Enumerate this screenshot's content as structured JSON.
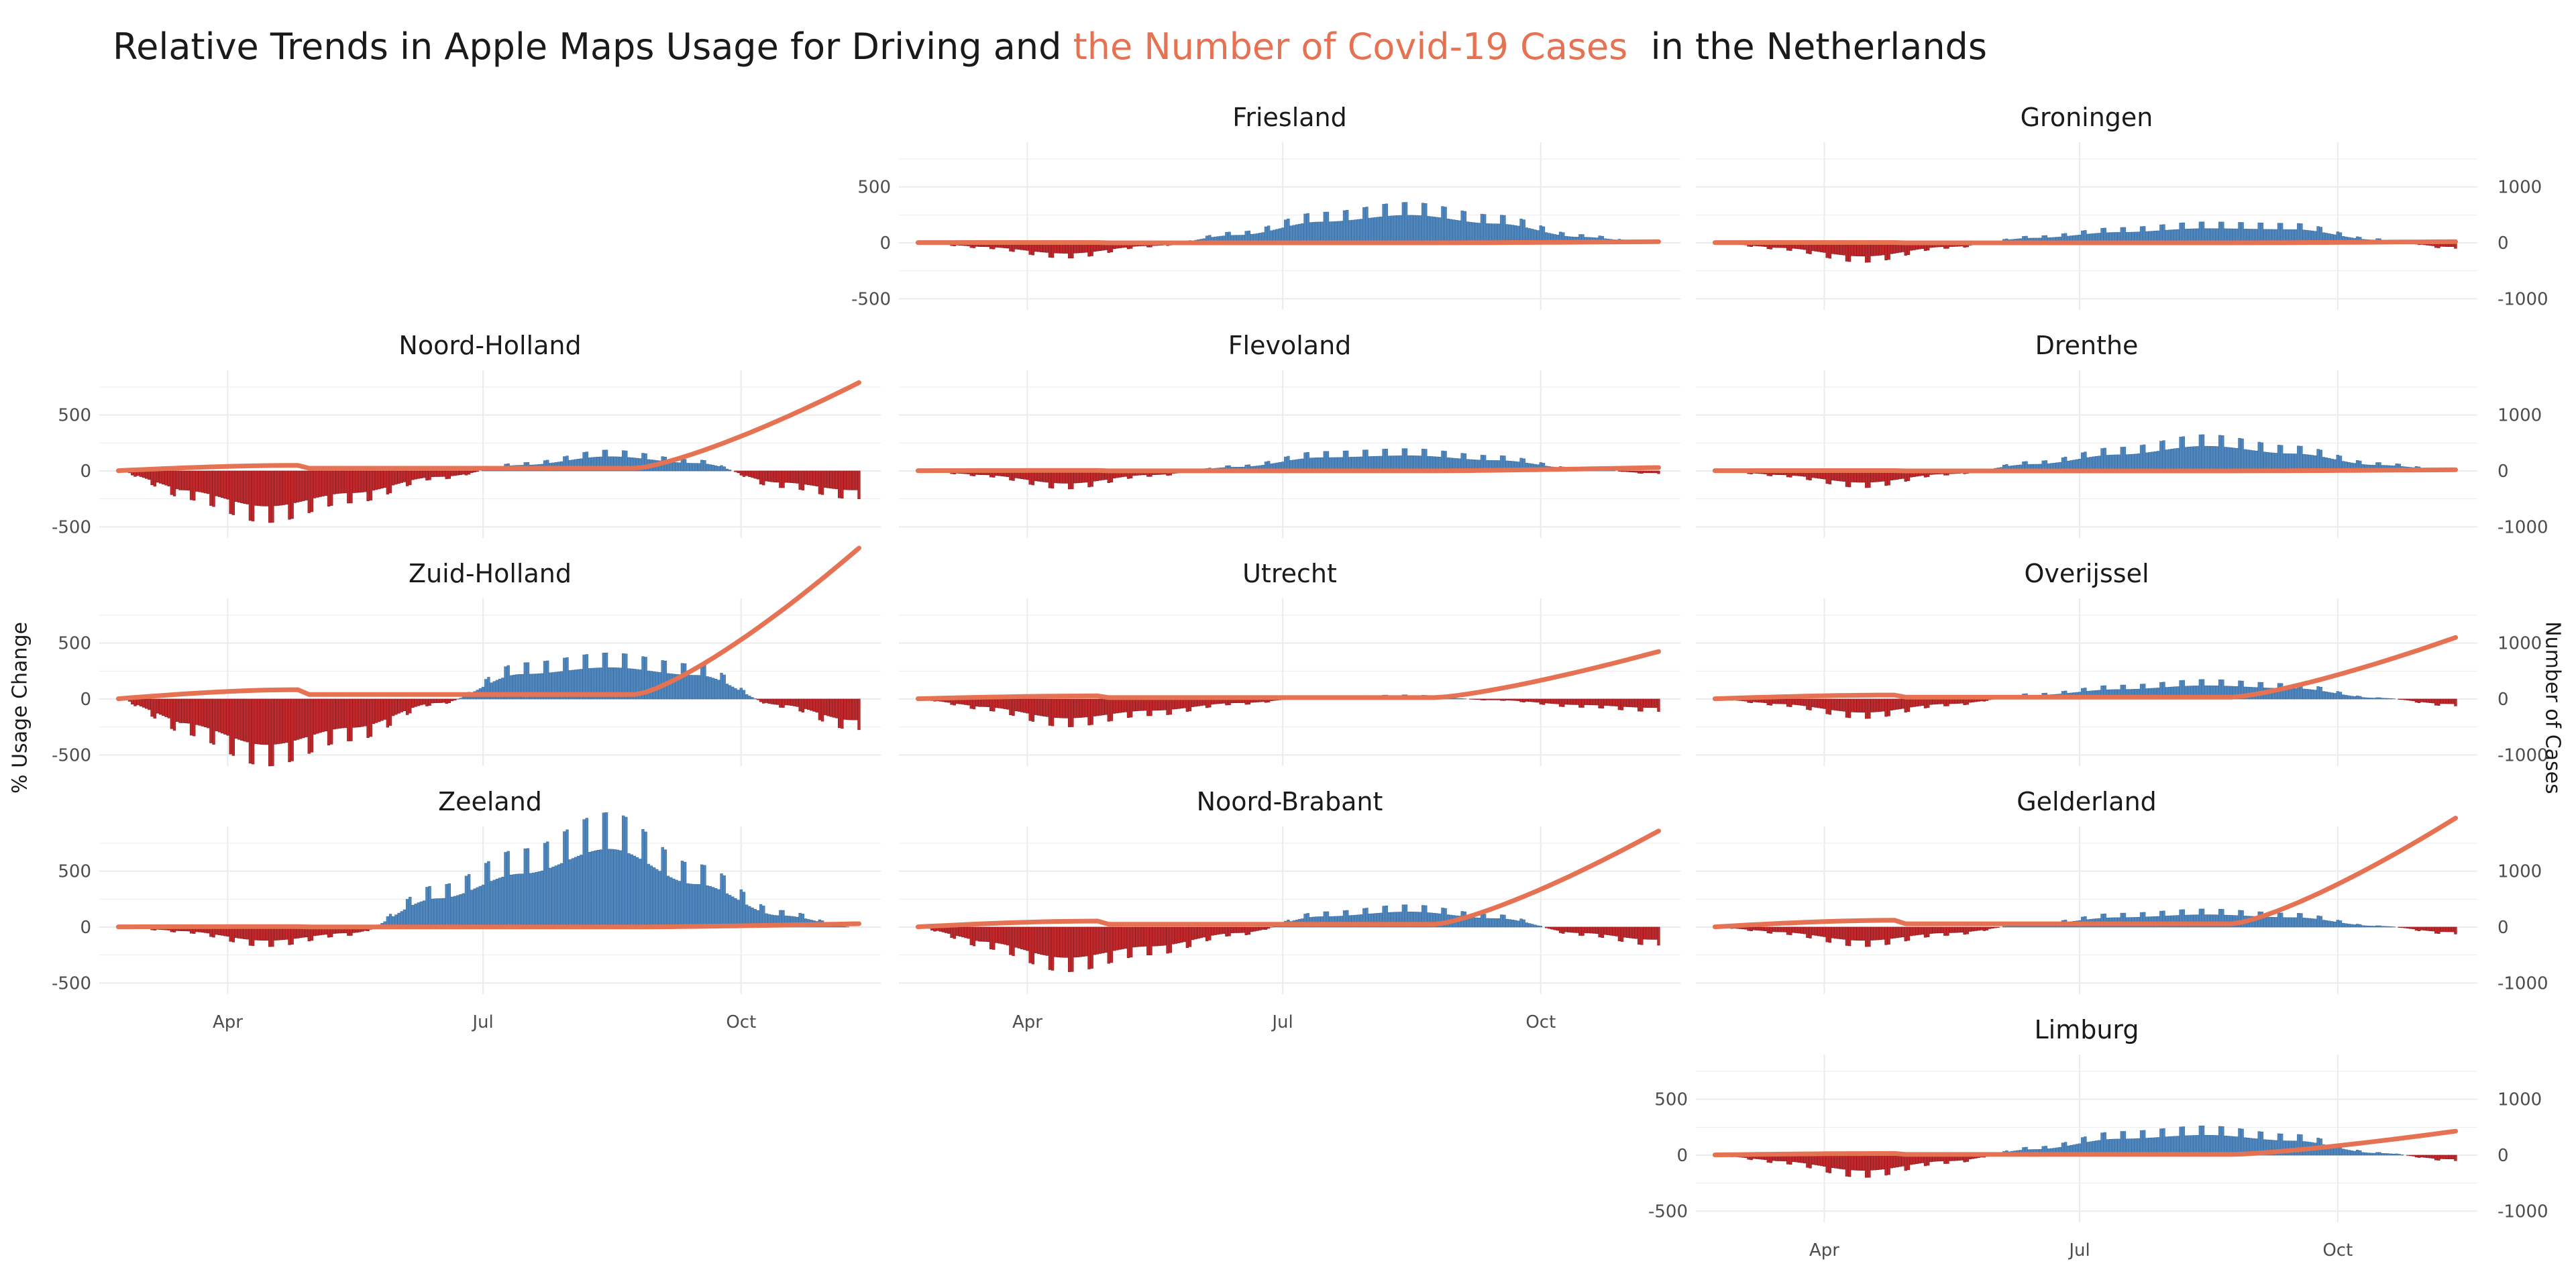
{
  "title": {
    "prefix": "Relative Trends in Apple Maps Usage for Driving and ",
    "highlight": "the Number of Covid-19 Cases",
    "suffix": "  in the Netherlands"
  },
  "colors": {
    "positive": "#4f86be",
    "negative": "#c0282c",
    "cases_line": "#e57252",
    "grid": "#ebebeb"
  },
  "chart_data": {
    "type": "bar",
    "subtype": "faceted bar + line, dual axis",
    "ylabel_left": "% Usage Change",
    "ylabel_right": "Number of Cases",
    "ylim_left": [
      -600,
      900
    ],
    "ylim_right": [
      -1200,
      1800
    ],
    "y_ticks_left": [
      -500,
      0,
      500
    ],
    "y_ticks_right": [
      -1000,
      0,
      1000
    ],
    "x_ticks": [
      "Apr",
      "Jul",
      "Oct"
    ],
    "x_range": [
      "2020-02-20",
      "2020-11-15"
    ],
    "grid": true,
    "panels": [
      {
        "name": "Friesland",
        "row": 0,
        "col": 1,
        "usage_peak": 290,
        "usage_trough": -120,
        "cases_end": 20,
        "series_usage_monthly": {
          "Mar": -40,
          "Apr": -110,
          "May": -30,
          "Jun": 80,
          "Jul": 220,
          "Aug": 290,
          "Sep": 200,
          "Oct": 60,
          "Nov": 0
        }
      },
      {
        "name": "Groningen",
        "row": 0,
        "col": 2,
        "usage_peak": 160,
        "usage_trough": -150,
        "cases_end": 20,
        "series_usage_monthly": {
          "Mar": -50,
          "Apr": -140,
          "May": -40,
          "Jun": 50,
          "Jul": 110,
          "Aug": 150,
          "Sep": 140,
          "Oct": 30,
          "Nov": -40
        }
      },
      {
        "name": "Noord-Holland",
        "row": 1,
        "col": 0,
        "usage_peak": 230,
        "usage_trough": -400,
        "cases_end": 1580,
        "series_usage_monthly": {
          "Mar": -200,
          "Apr": -370,
          "May": -230,
          "Jun": -60,
          "Jul": 60,
          "Aug": 150,
          "Sep": 80,
          "Oct": -120,
          "Nov": -200
        }
      },
      {
        "name": "Flevoland",
        "row": 1,
        "col": 1,
        "usage_peak": 190,
        "usage_trough": -140,
        "cases_end": 60,
        "series_usage_monthly": {
          "Mar": -40,
          "Apr": -130,
          "May": -40,
          "Jun": 40,
          "Jul": 140,
          "Aug": 160,
          "Sep": 110,
          "Oct": 20,
          "Nov": -20
        }
      },
      {
        "name": "Drenthe",
        "row": 1,
        "col": 2,
        "usage_peak": 270,
        "usage_trough": -130,
        "cases_end": 20,
        "series_usage_monthly": {
          "Mar": -40,
          "Apr": -120,
          "May": -30,
          "Jun": 70,
          "Jul": 170,
          "Aug": 260,
          "Sep": 180,
          "Oct": 60,
          "Nov": 10
        }
      },
      {
        "name": "Zuid-Holland",
        "row": 2,
        "col": 0,
        "usage_peak": 470,
        "usage_trough": -530,
        "cases_end": 2700,
        "series_usage_monthly": {
          "Mar": -250,
          "Apr": -480,
          "May": -300,
          "Jun": -40,
          "Jul": 260,
          "Aug": 330,
          "Sep": 250,
          "Oct": -60,
          "Nov": -220
        }
      },
      {
        "name": "Utrecht",
        "row": 2,
        "col": 1,
        "usage_peak": 60,
        "usage_trough": -220,
        "cases_end": 850,
        "series_usage_monthly": {
          "Mar": -80,
          "Apr": -200,
          "May": -120,
          "Jun": -40,
          "Jul": 20,
          "Aug": 30,
          "Sep": -10,
          "Oct": -60,
          "Nov": -90
        }
      },
      {
        "name": "Overijssel",
        "row": 2,
        "col": 2,
        "usage_peak": 150,
        "usage_trough": -150,
        "cases_end": 1100,
        "series_usage_monthly": {
          "Mar": -50,
          "Apr": -140,
          "May": -50,
          "Jun": 40,
          "Jul": 100,
          "Aug": 140,
          "Sep": 110,
          "Oct": 10,
          "Nov": -50
        }
      },
      {
        "name": "Zeeland",
        "row": 3,
        "col": 0,
        "usage_peak": 870,
        "usage_trough": -150,
        "cases_end": 60,
        "series_usage_monthly": {
          "Mar": -40,
          "Apr": -140,
          "May": -60,
          "Jun": 300,
          "Jul": 560,
          "Aug": 820,
          "Sep": 450,
          "Oct": 120,
          "Nov": 0
        }
      },
      {
        "name": "Noord-Brabant",
        "row": 3,
        "col": 1,
        "usage_peak": 200,
        "usage_trough": -360,
        "cases_end": 1720,
        "series_usage_monthly": {
          "Mar": -150,
          "Apr": -320,
          "May": -200,
          "Jun": -60,
          "Jul": 110,
          "Aug": 160,
          "Sep": 90,
          "Oct": -60,
          "Nov": -130
        }
      },
      {
        "name": "Gelderland",
        "row": 3,
        "col": 2,
        "usage_peak": 140,
        "usage_trough": -150,
        "cases_end": 1950,
        "series_usage_monthly": {
          "Mar": -50,
          "Apr": -140,
          "May": -60,
          "Jun": 30,
          "Jul": 100,
          "Aug": 130,
          "Sep": 100,
          "Oct": 10,
          "Nov": -50
        }
      },
      {
        "name": "Limburg",
        "row": 4,
        "col": 2,
        "usage_peak": 220,
        "usage_trough": -170,
        "cases_end": 430,
        "series_usage_monthly": {
          "Mar": -60,
          "Apr": -160,
          "May": -60,
          "Jun": 60,
          "Jul": 170,
          "Aug": 210,
          "Sep": 150,
          "Oct": 20,
          "Nov": -40
        }
      }
    ]
  }
}
